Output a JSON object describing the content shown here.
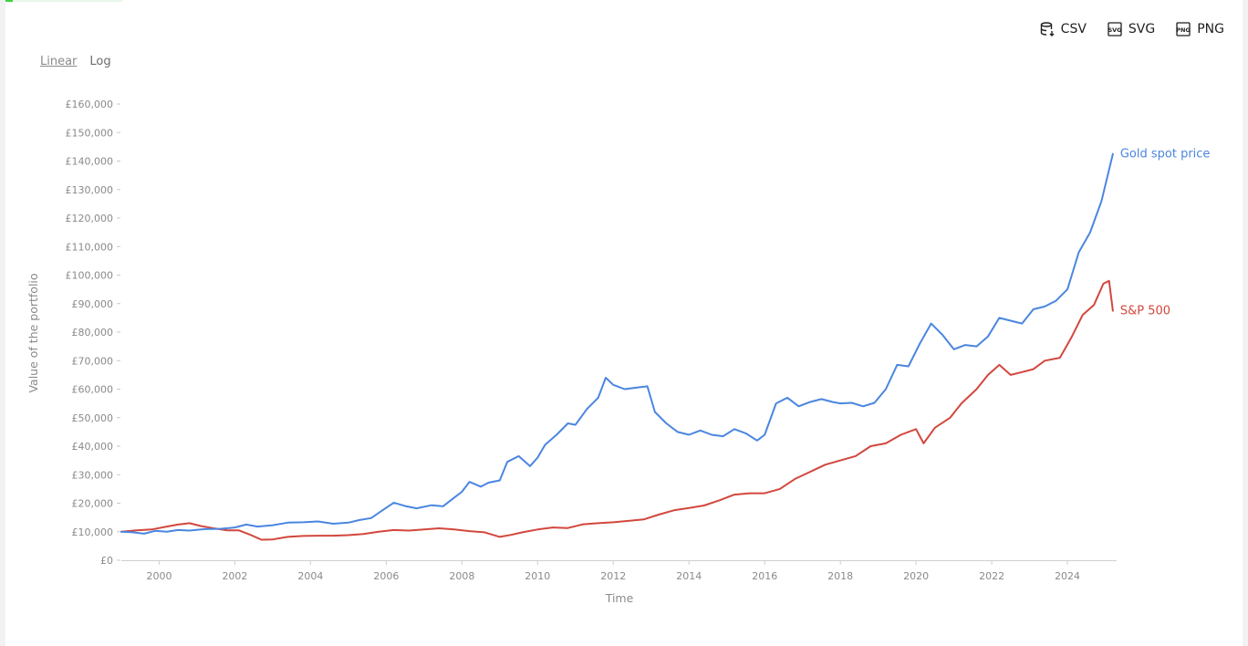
{
  "toolbar": {
    "csv_label": "CSV",
    "svg_label": "SVG",
    "png_label": "PNG"
  },
  "scale": {
    "linear_label": "Linear",
    "log_label": "Log",
    "selected": "Linear"
  },
  "chart_data": {
    "type": "line",
    "title": "",
    "xlabel": "Time",
    "ylabel": "Value of the portfolio",
    "xlim": [
      1999.0,
      2025.3
    ],
    "ylim": [
      0,
      160000
    ],
    "x_ticks": [
      2000,
      2002,
      2004,
      2006,
      2008,
      2010,
      2012,
      2014,
      2016,
      2018,
      2020,
      2022,
      2024
    ],
    "y_ticks": [
      0,
      10000,
      20000,
      30000,
      40000,
      50000,
      60000,
      70000,
      80000,
      90000,
      100000,
      110000,
      120000,
      130000,
      140000,
      150000,
      160000
    ],
    "y_tick_labels": [
      "£0",
      "£10,000",
      "£20,000",
      "£30,000",
      "£40,000",
      "£50,000",
      "£60,000",
      "£70,000",
      "£80,000",
      "£90,000",
      "£100,000",
      "£110,000",
      "£120,000",
      "£130,000",
      "£140,000",
      "£150,000",
      "£160,000"
    ],
    "grid": false,
    "legend": "end-of-line labels",
    "series": [
      {
        "name": "Gold spot price",
        "color": "#4a86e0",
        "x": [
          1999.0,
          1999.3,
          1999.6,
          1999.9,
          2000.2,
          2000.5,
          2000.8,
          2001.2,
          2001.6,
          2002.0,
          2002.3,
          2002.6,
          2003.0,
          2003.4,
          2003.8,
          2004.2,
          2004.6,
          2005.0,
          2005.3,
          2005.6,
          2005.9,
          2006.2,
          2006.5,
          2006.8,
          2007.2,
          2007.5,
          2007.8,
          2008.0,
          2008.2,
          2008.5,
          2008.7,
          2009.0,
          2009.2,
          2009.5,
          2009.8,
          2010.0,
          2010.2,
          2010.5,
          2010.8,
          2011.0,
          2011.3,
          2011.6,
          2011.8,
          2012.0,
          2012.3,
          2012.6,
          2012.9,
          2013.1,
          2013.4,
          2013.7,
          2014.0,
          2014.3,
          2014.6,
          2014.9,
          2015.2,
          2015.5,
          2015.8,
          2016.0,
          2016.3,
          2016.6,
          2016.9,
          2017.2,
          2017.5,
          2017.8,
          2018.0,
          2018.3,
          2018.6,
          2018.9,
          2019.2,
          2019.5,
          2019.8,
          2020.1,
          2020.4,
          2020.7,
          2021.0,
          2021.3,
          2021.6,
          2021.9,
          2022.2,
          2022.5,
          2022.8,
          2023.1,
          2023.4,
          2023.7,
          2024.0,
          2024.3,
          2024.6,
          2024.9,
          2025.2
        ],
        "y": [
          10000,
          9800,
          9300,
          10300,
          10000,
          10600,
          10400,
          10900,
          11000,
          11500,
          12500,
          11800,
          12300,
          13200,
          13300,
          13600,
          12800,
          13200,
          14100,
          14800,
          17500,
          20200,
          19000,
          18200,
          19300,
          18900,
          22000,
          24000,
          27500,
          25800,
          27200,
          28000,
          34500,
          36500,
          33000,
          36000,
          40500,
          44000,
          48000,
          47500,
          53000,
          57000,
          64000,
          61500,
          60000,
          60500,
          61000,
          52000,
          48000,
          45000,
          44000,
          45500,
          44000,
          43500,
          46000,
          44500,
          42000,
          44000,
          55000,
          57000,
          54000,
          55500,
          56500,
          55500,
          55000,
          55200,
          54000,
          55200,
          60000,
          68500,
          68000,
          76000,
          83000,
          79000,
          74000,
          75500,
          75000,
          78500,
          85000,
          84000,
          83000,
          88000,
          89000,
          91000,
          95000,
          108000,
          115000,
          126000,
          142500
        ]
      },
      {
        "name": "S&P 500",
        "color": "#d2473d",
        "x": [
          1999.0,
          1999.4,
          1999.8,
          2000.2,
          2000.5,
          2000.8,
          2001.1,
          2001.4,
          2001.8,
          2002.1,
          2002.4,
          2002.7,
          2003.0,
          2003.4,
          2003.8,
          2004.2,
          2004.6,
          2005.0,
          2005.4,
          2005.8,
          2006.2,
          2006.6,
          2007.0,
          2007.4,
          2007.8,
          2008.2,
          2008.6,
          2009.0,
          2009.3,
          2009.6,
          2010.0,
          2010.4,
          2010.8,
          2011.2,
          2011.6,
          2012.0,
          2012.4,
          2012.8,
          2013.2,
          2013.6,
          2014.0,
          2014.4,
          2014.8,
          2015.2,
          2015.6,
          2016.0,
          2016.4,
          2016.8,
          2017.2,
          2017.6,
          2018.0,
          2018.4,
          2018.8,
          2019.2,
          2019.6,
          2020.0,
          2020.2,
          2020.5,
          2020.9,
          2021.2,
          2021.6,
          2021.9,
          2022.2,
          2022.5,
          2022.8,
          2023.1,
          2023.4,
          2023.8,
          2024.1,
          2024.4,
          2024.7,
          2024.95,
          2025.1,
          2025.2
        ],
        "y": [
          10000,
          10500,
          10800,
          11800,
          12500,
          13000,
          12000,
          11300,
          10500,
          10500,
          9000,
          7200,
          7300,
          8200,
          8500,
          8600,
          8600,
          8800,
          9200,
          10000,
          10600,
          10400,
          10800,
          11200,
          10800,
          10200,
          9800,
          8200,
          8900,
          9800,
          10800,
          11500,
          11300,
          12600,
          13000,
          13300,
          13800,
          14300,
          16000,
          17500,
          18300,
          19200,
          21000,
          23000,
          23500,
          23500,
          25000,
          28500,
          31000,
          33500,
          35000,
          36500,
          40000,
          41000,
          44000,
          46000,
          41000,
          46500,
          50000,
          55000,
          60000,
          65000,
          68500,
          65000,
          66000,
          67000,
          70000,
          71000,
          78000,
          86000,
          89500,
          97000,
          98000,
          87500
        ]
      }
    ]
  }
}
